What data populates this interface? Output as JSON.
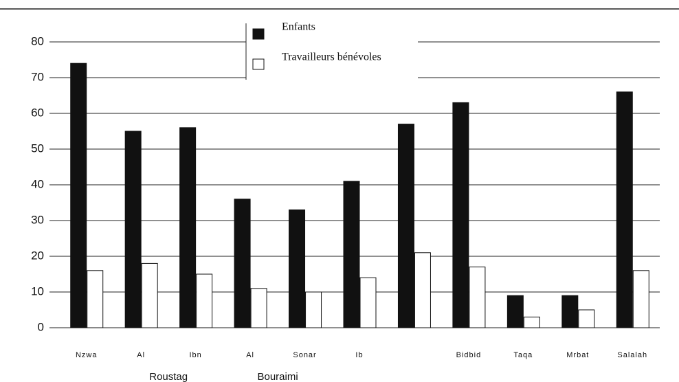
{
  "chart_data": {
    "type": "bar",
    "categories": [
      [
        "Nzwa"
      ],
      [
        "Al",
        "Roustag"
      ],
      [
        "Ibn"
      ],
      [
        "Al",
        "Bouraimi"
      ],
      [
        "Sonar"
      ],
      [
        "Ib"
      ],
      null,
      [
        "Bidbid"
      ],
      [
        "Taqa"
      ],
      [
        "Mrbat"
      ],
      [
        "Salalah"
      ]
    ],
    "series": [
      {
        "name": "Enfants",
        "color": "#111111",
        "values": [
          74,
          55,
          56,
          36,
          33,
          41,
          57,
          63,
          9,
          9,
          66
        ]
      },
      {
        "name": "Travailleurs bénévoles",
        "color": "#ffffff",
        "values": [
          16,
          18,
          15,
          11,
          10,
          14,
          21,
          17,
          3,
          5,
          16
        ]
      }
    ],
    "ylim": [
      0,
      80
    ],
    "yticks": [
      0,
      10,
      20,
      30,
      40,
      50,
      60,
      70,
      80
    ],
    "grid": true
  }
}
